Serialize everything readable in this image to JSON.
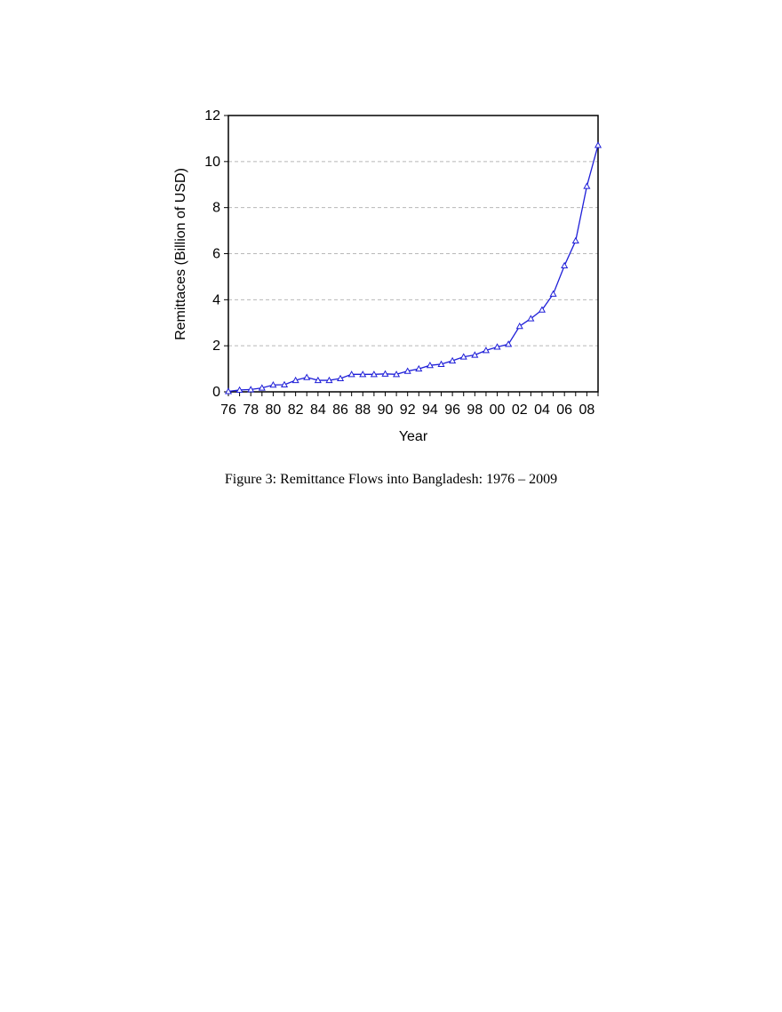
{
  "figure": {
    "caption": "Figure 3: Remittance Flows into Bangladesh: 1976 – 2009"
  },
  "chart_data": {
    "type": "line",
    "title": "",
    "xlabel": "Year",
    "ylabel": "Remittaces (Billion of USD)",
    "x": [
      1976,
      1977,
      1978,
      1979,
      1980,
      1981,
      1982,
      1983,
      1984,
      1985,
      1986,
      1987,
      1988,
      1989,
      1990,
      1991,
      1992,
      1993,
      1994,
      1995,
      1996,
      1997,
      1998,
      1999,
      2000,
      2001,
      2002,
      2003,
      2004,
      2005,
      2006,
      2007,
      2008,
      2009
    ],
    "x_tick_labels": [
      "76",
      "78",
      "80",
      "82",
      "84",
      "86",
      "88",
      "90",
      "92",
      "94",
      "96",
      "98",
      "00",
      "02",
      "04",
      "06",
      "08"
    ],
    "x_tick_years": [
      1976,
      1978,
      1980,
      1982,
      1984,
      1986,
      1988,
      1990,
      1992,
      1994,
      1996,
      1998,
      2000,
      2002,
      2004,
      2006,
      2008
    ],
    "xlim": [
      1976,
      2009
    ],
    "ylim": [
      0,
      12
    ],
    "y_ticks": [
      0,
      2,
      4,
      6,
      8,
      10,
      12
    ],
    "grid": "horizontal dashed",
    "series": [
      {
        "values": [
          0.02,
          0.08,
          0.1,
          0.17,
          0.3,
          0.31,
          0.5,
          0.63,
          0.5,
          0.5,
          0.58,
          0.76,
          0.76,
          0.76,
          0.78,
          0.76,
          0.9,
          1.0,
          1.15,
          1.2,
          1.35,
          1.52,
          1.6,
          1.8,
          1.95,
          2.07,
          2.85,
          3.18,
          3.56,
          4.25,
          5.48,
          6.56,
          8.93,
          10.71
        ],
        "color": "#1f1fd8",
        "marker": "open-triangle"
      }
    ]
  }
}
